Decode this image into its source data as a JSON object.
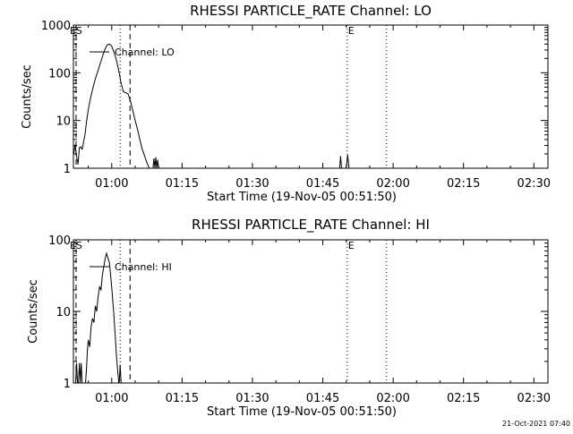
{
  "footer_timestamp": "21-Oct-2021 07:40",
  "chart_data": [
    {
      "type": "line",
      "title": "RHESSI PARTICLE_RATE Channel: LO",
      "xlabel": "Start Time (19-Nov-05 00:51:50)",
      "ylabel": "Counts/sec",
      "yscale": "log",
      "ylim": [
        1,
        1000
      ],
      "xlim_minutes": [
        51.83,
        153.0
      ],
      "x_ticks": [
        {
          "value": 60,
          "label": "01:00"
        },
        {
          "value": 75,
          "label": "01:15"
        },
        {
          "value": 90,
          "label": "01:30"
        },
        {
          "value": 105,
          "label": "01:45"
        },
        {
          "value": 120,
          "label": "02:00"
        },
        {
          "value": 135,
          "label": "02:15"
        },
        {
          "value": 150,
          "label": "02:30"
        }
      ],
      "y_ticks": [
        {
          "value": 1,
          "label": "1"
        },
        {
          "value": 10,
          "label": "10"
        },
        {
          "value": 100,
          "label": "100"
        },
        {
          "value": 1000,
          "label": "1000"
        }
      ],
      "legend": {
        "label": "Channel: LO",
        "position": "top-left"
      },
      "markers": [
        {
          "x": 52.4,
          "style": "dashed",
          "label": "ES"
        },
        {
          "x": 61.8,
          "style": "dotted",
          "label": ""
        },
        {
          "x": 63.9,
          "style": "dashed",
          "label": ""
        },
        {
          "x": 110.2,
          "style": "dotted",
          "label": "E"
        },
        {
          "x": 118.6,
          "style": "dotted",
          "label": ""
        }
      ],
      "series": [
        {
          "name": "Channel: LO",
          "x": [
            51.9,
            52.2,
            52.5,
            52.8,
            53.1,
            53.4,
            53.7,
            54.0,
            54.3,
            54.6,
            55.0,
            55.5,
            56.0,
            56.5,
            57.0,
            57.5,
            58.0,
            58.5,
            59.0,
            59.5,
            60.0,
            60.5,
            61.0,
            61.5,
            62.0,
            62.5,
            63.0,
            63.5,
            64.0,
            64.5,
            65.0,
            65.5,
            66.0,
            66.5,
            67.0,
            67.5,
            68.0,
            68.3
          ],
          "y": [
            2.0,
            3.1,
            1.8,
            1.2,
            2.7,
            2.8,
            2.5,
            3.6,
            5.0,
            9.0,
            17.0,
            30.0,
            48.0,
            75.0,
            105.0,
            150.0,
            215.0,
            300.0,
            380.0,
            400.0,
            360.0,
            270.0,
            185.0,
            110.0,
            60.0,
            40.0,
            38.0,
            36.0,
            25.0,
            16.0,
            10.0,
            6.5,
            4.0,
            2.5,
            1.8,
            1.3,
            1.0,
            1.0
          ]
        },
        {
          "name": "",
          "x": [
            68.8,
            69.0,
            69.2,
            69.4,
            69.6,
            69.8,
            70.0
          ],
          "y": [
            1.0,
            1.6,
            1.0,
            1.7,
            1.0,
            1.5,
            1.0
          ]
        },
        {
          "name": "",
          "x": [
            108.6,
            108.8,
            109.0
          ],
          "y": [
            1.0,
            1.8,
            1.0
          ]
        },
        {
          "name": "",
          "x": [
            110.0,
            110.3,
            110.6
          ],
          "y": [
            1.0,
            1.9,
            1.0
          ]
        }
      ]
    },
    {
      "type": "line",
      "title": "RHESSI PARTICLE_RATE Channel: HI",
      "xlabel": "Start Time (19-Nov-05 00:51:50)",
      "ylabel": "Counts/sec",
      "yscale": "log",
      "ylim": [
        1,
        100
      ],
      "xlim_minutes": [
        51.83,
        153.0
      ],
      "x_ticks": [
        {
          "value": 60,
          "label": "01:00"
        },
        {
          "value": 75,
          "label": "01:15"
        },
        {
          "value": 90,
          "label": "01:30"
        },
        {
          "value": 105,
          "label": "01:45"
        },
        {
          "value": 120,
          "label": "02:00"
        },
        {
          "value": 135,
          "label": "02:15"
        },
        {
          "value": 150,
          "label": "02:30"
        }
      ],
      "y_ticks": [
        {
          "value": 1,
          "label": "1"
        },
        {
          "value": 10,
          "label": "10"
        },
        {
          "value": 100,
          "label": "100"
        }
      ],
      "legend": {
        "label": "Channel: HI",
        "position": "top-left"
      },
      "markers": [
        {
          "x": 52.4,
          "style": "dashed",
          "label": "ES"
        },
        {
          "x": 61.8,
          "style": "dotted",
          "label": ""
        },
        {
          "x": 63.9,
          "style": "dashed",
          "label": ""
        },
        {
          "x": 110.2,
          "style": "dotted",
          "label": "E"
        },
        {
          "x": 118.6,
          "style": "dotted",
          "label": ""
        }
      ],
      "series": [
        {
          "name": "Channel: HI",
          "x": [
            52.3,
            52.5,
            52.7,
            52.9,
            53.1,
            53.3,
            53.5,
            53.7,
            53.9
          ],
          "y": [
            1.0,
            1.9,
            1.0,
            1.0,
            1.9,
            1.0,
            1.9,
            1.0,
            1.0
          ]
        },
        {
          "name": "",
          "x": [
            54.4,
            54.6,
            54.8,
            55.0,
            55.3,
            55.6,
            55.9,
            56.2,
            56.5,
            56.8,
            57.1,
            57.4,
            57.7,
            58.0,
            58.3,
            58.6,
            58.9,
            59.2,
            59.5,
            59.8,
            60.1,
            60.4,
            60.7,
            61.0,
            61.3,
            61.5
          ],
          "y": [
            1.0,
            1.5,
            2.8,
            4.0,
            3.2,
            6.0,
            8.0,
            7.0,
            12.0,
            10.0,
            16.0,
            22.0,
            20.0,
            32.0,
            42.0,
            55.0,
            65.0,
            55.0,
            48.0,
            30.0,
            18.0,
            10.0,
            5.0,
            2.5,
            1.4,
            1.0
          ]
        },
        {
          "name": "",
          "x": [
            61.6,
            61.8,
            62.0,
            62.2
          ],
          "y": [
            1.0,
            1.8,
            1.0,
            1.0
          ]
        }
      ]
    }
  ]
}
